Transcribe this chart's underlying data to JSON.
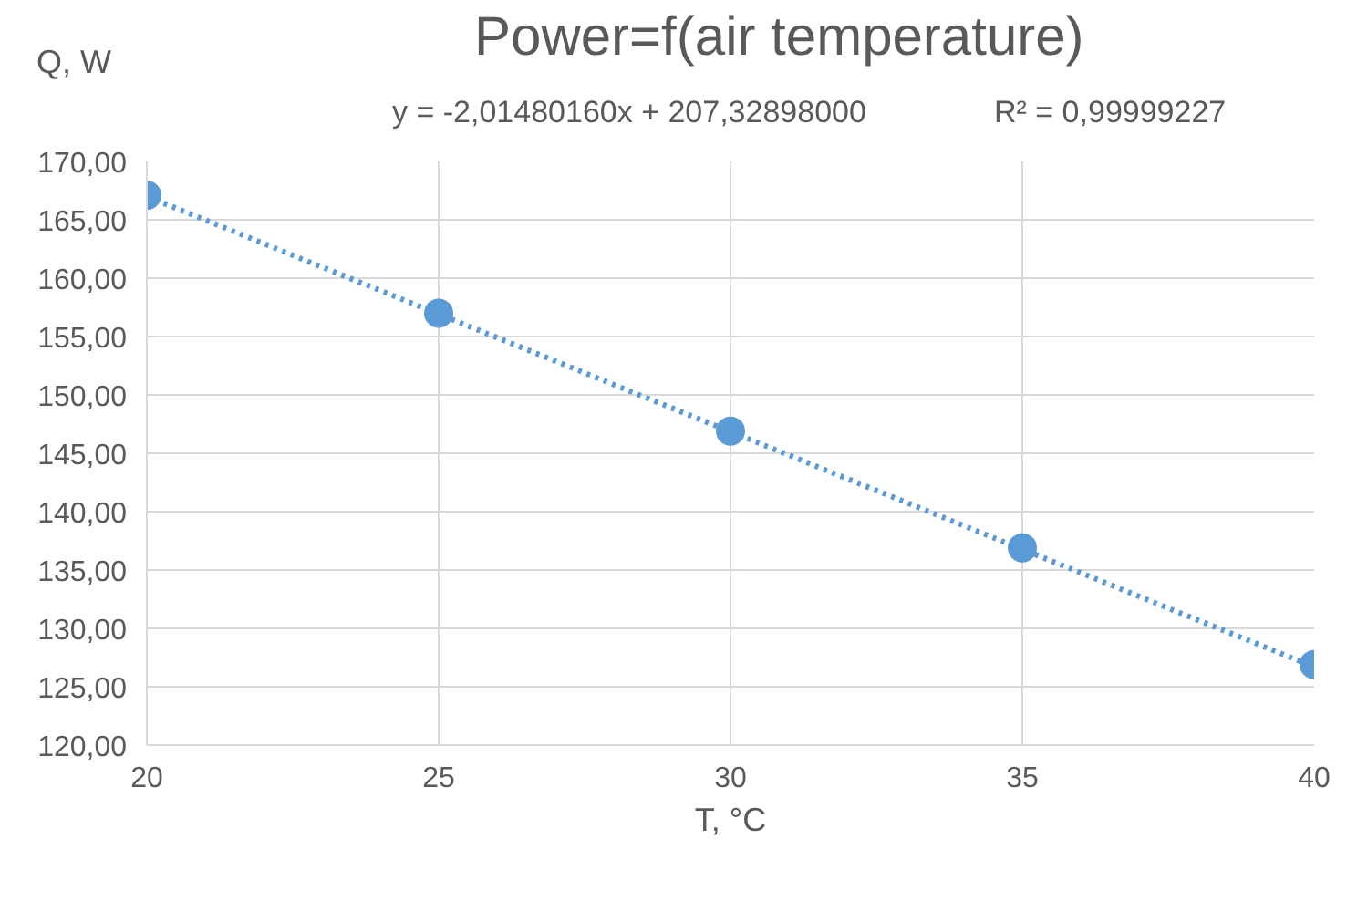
{
  "chart_data": {
    "type": "scatter",
    "title": "Power=f(air temperature)",
    "xlabel": "T, °C",
    "ylabel": "Q, W",
    "x": [
      20,
      25,
      30,
      35,
      40
    ],
    "series": [
      {
        "color": "#5b9bd5",
        "values": [
          167.1,
          157.0,
          146.9,
          136.9,
          126.9
        ],
        "marker": "circle"
      },
      {
        "type": "line",
        "color": "#5b9bd5",
        "line_style": "dotted",
        "x": [
          20,
          40
        ],
        "values": [
          167.0,
          126.7
        ]
      }
    ],
    "annotations": [
      "y = -2,01480160x + 207,32898000",
      "R² = 0,99999227"
    ],
    "xlim": [
      20,
      40
    ],
    "xticks": [
      20,
      25,
      30,
      35,
      40
    ],
    "ylim": [
      120,
      170
    ],
    "yticks": [
      {
        "value": 120,
        "label": "120,00"
      },
      {
        "value": 125,
        "label": "125,00"
      },
      {
        "value": 130,
        "label": "130,00"
      },
      {
        "value": 135,
        "label": "135,00"
      },
      {
        "value": 140,
        "label": "140,00"
      },
      {
        "value": 145,
        "label": "145,00"
      },
      {
        "value": 150,
        "label": "150,00"
      },
      {
        "value": 155,
        "label": "155,00"
      },
      {
        "value": 160,
        "label": "160,00"
      },
      {
        "value": 165,
        "label": "165,00"
      },
      {
        "value": 170,
        "label": "170,00"
      }
    ],
    "grid": true
  }
}
